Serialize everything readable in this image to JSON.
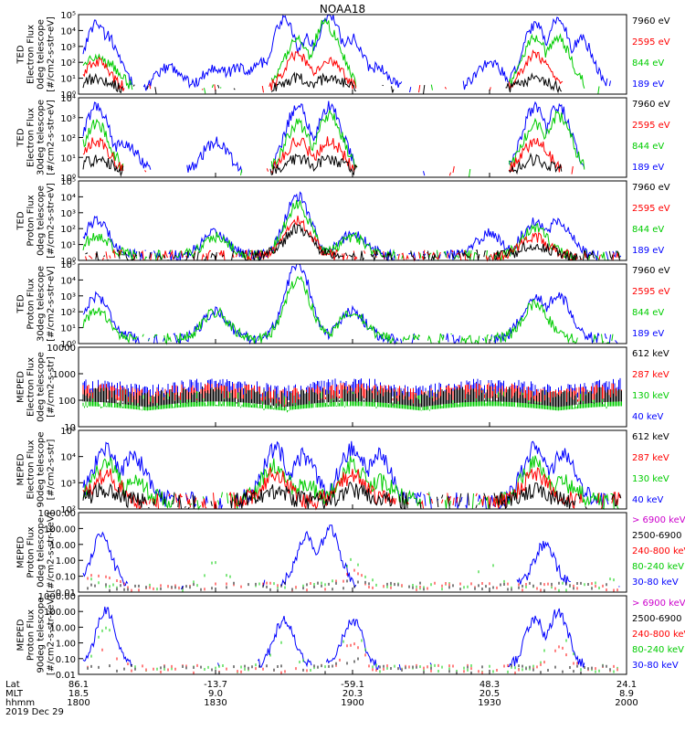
{
  "title": "NOAA18",
  "panels": [
    {
      "ylabel": [
        "TED",
        "Electron Flux",
        "0deg telescope",
        "[#/cm2-s-str-eV]"
      ],
      "ticks": [
        "10⁰",
        "10¹",
        "10²",
        "10³",
        "10⁴",
        "10⁵"
      ],
      "legend": [
        {
          "text": "7960 eV",
          "color": "#000000"
        },
        {
          "text": "2595 eV",
          "color": "#ff0000"
        },
        {
          "text": "844 eV",
          "color": "#00cc00"
        },
        {
          "text": "189 eV",
          "color": "#0000ff"
        }
      ]
    },
    {
      "ylabel": [
        "TED",
        "Electron Flux",
        "30deg telescope",
        "[#/cm2-s-str-eV]"
      ],
      "ticks": [
        "10⁰",
        "10¹",
        "10²",
        "10³",
        "10⁴"
      ],
      "legend": [
        {
          "text": "7960 eV",
          "color": "#000000"
        },
        {
          "text": "2595 eV",
          "color": "#ff0000"
        },
        {
          "text": "844 eV",
          "color": "#00cc00"
        },
        {
          "text": "189 eV",
          "color": "#0000ff"
        }
      ]
    },
    {
      "ylabel": [
        "TED",
        "Proton Flux",
        "0deg telescope",
        "[#/cm2-s-str-eV]"
      ],
      "ticks": [
        "10⁰",
        "10¹",
        "10²",
        "10³",
        "10⁴",
        "10⁵"
      ],
      "legend": [
        {
          "text": "7960 eV",
          "color": "#000000"
        },
        {
          "text": "2595 eV",
          "color": "#ff0000"
        },
        {
          "text": "844 eV",
          "color": "#00cc00"
        },
        {
          "text": "189 eV",
          "color": "#0000ff"
        }
      ]
    },
    {
      "ylabel": [
        "TED",
        "Proton Flux",
        "30deg telescope",
        "[#/cm2-s-str-eV]"
      ],
      "ticks": [
        "10⁰",
        "10¹",
        "10²",
        "10³",
        "10⁴",
        "10⁵"
      ],
      "legend": [
        {
          "text": "7960 eV",
          "color": "#000000"
        },
        {
          "text": "2595 eV",
          "color": "#ff0000"
        },
        {
          "text": "844 eV",
          "color": "#00cc00"
        },
        {
          "text": "189 eV",
          "color": "#0000ff"
        }
      ]
    },
    {
      "ylabel": [
        "MEPED",
        "Electron Flux",
        "0deg telescope",
        "[#/cm2-s-str]"
      ],
      "ticks": [
        "10",
        "100",
        "1000",
        "10000"
      ],
      "legend": [
        {
          "text": "612 keV",
          "color": "#000000"
        },
        {
          "text": "287 keV",
          "color": "#ff0000"
        },
        {
          "text": "130 keV",
          "color": "#00cc00"
        },
        {
          "text": "40 keV",
          "color": "#0000ff"
        }
      ]
    },
    {
      "ylabel": [
        "MEPED",
        "Electron Flux",
        "90deg telescope",
        "[#/cm2-s-str]"
      ],
      "ticks": [
        "10²",
        "10³",
        "10⁴",
        "10⁵"
      ],
      "legend": [
        {
          "text": "612 keV",
          "color": "#000000"
        },
        {
          "text": "287 keV",
          "color": "#ff0000"
        },
        {
          "text": "130 keV",
          "color": "#00cc00"
        },
        {
          "text": "40 keV",
          "color": "#0000ff"
        }
      ]
    },
    {
      "ylabel": [
        "MEPED",
        "Proton Flux",
        "0deg telescope",
        "[#/cm2-s-str-keV]"
      ],
      "ticks": [
        "0.01",
        "0.10",
        "1.00",
        "10.00",
        "100.00",
        "1000.00"
      ],
      "legend": [
        {
          "text": "> 6900 keV",
          "color": "#cc00cc"
        },
        {
          "text": "2500-6900",
          "color": "#000000"
        },
        {
          "text": "240-800 keV",
          "color": "#ff0000"
        },
        {
          "text": "80-240 keV",
          "color": "#00cc00"
        },
        {
          "text": "30-80 keV",
          "color": "#0000ff"
        }
      ]
    },
    {
      "ylabel": [
        "MEPED",
        "Proton Flux",
        "90deg telescope",
        "[#/cm2-s-str-keV]"
      ],
      "ticks": [
        "0.01",
        "0.10",
        "1.00",
        "10.00",
        "100.00",
        "1000.00"
      ],
      "legend": [
        {
          "text": "> 6900 keV",
          "color": "#cc00cc"
        },
        {
          "text": "2500-6900",
          "color": "#000000"
        },
        {
          "text": "240-800 keV",
          "color": "#ff0000"
        },
        {
          "text": "80-240 keV",
          "color": "#00cc00"
        },
        {
          "text": "30-80 keV",
          "color": "#0000ff"
        }
      ]
    }
  ],
  "footer": {
    "row_labels": [
      "Lat",
      "MLT",
      "hhmm"
    ],
    "date": "2019 Dec 29",
    "columns": [
      {
        "lat": "86.1",
        "mlt": "18.5",
        "hhmm": "1800"
      },
      {
        "lat": "-13.7",
        "mlt": "9.0",
        "hhmm": "1830"
      },
      {
        "lat": "-59.1",
        "mlt": "20.3",
        "hhmm": "1900"
      },
      {
        "lat": "48.3",
        "mlt": "20.5",
        "hhmm": "1930"
      },
      {
        "lat": "24.1",
        "mlt": "8.9",
        "hhmm": "2000"
      }
    ]
  },
  "chart_data": {
    "type": "line",
    "title": "NOAA18",
    "x_axis": {
      "label": "hhmm",
      "range": [
        "1800",
        "2000"
      ],
      "ticks": [
        "1800",
        "1830",
        "1900",
        "1930",
        "2000"
      ]
    },
    "y_scale": "log",
    "grid": false,
    "legend_position": "right",
    "panels": [
      {
        "name": "TED Electron Flux 0deg telescope",
        "ylim": [
          1,
          100000
        ],
        "series": [
          {
            "name": "189 eV",
            "color": "#0000ff",
            "x": [
              "1804",
              "1806",
              "1820",
              "1830",
              "1835",
              "1840",
              "1845",
              "1850",
              "1855",
              "1900",
              "1905",
              "1930",
              "1940",
              "1945",
              "1950"
            ],
            "values": [
              30000,
              5000,
              50,
              50,
              50,
              100,
              50000,
              3000,
              100000,
              3000,
              50,
              100,
              20000,
              50000,
              3000
            ]
          },
          {
            "name": "844 eV",
            "color": "#00cc00",
            "x": [
              "1804",
              "1806",
              "1848",
              "1854",
              "1855",
              "1940",
              "1945"
            ],
            "values": [
              300,
              100,
              3000,
              30000,
              10000,
              3000,
              3000
            ]
          },
          {
            "name": "2595 eV",
            "color": "#ff0000",
            "x": [
              "1804",
              "1848",
              "1855",
              "1940"
            ],
            "values": [
              100,
              300,
              100,
              300
            ]
          },
          {
            "name": "7960 eV",
            "color": "#000000",
            "x": [
              "1804",
              "1848",
              "1855",
              "1940"
            ],
            "values": [
              10,
              10,
              10,
              10
            ]
          }
        ]
      },
      {
        "name": "TED Electron Flux 30deg telescope",
        "ylim": [
          1,
          30000
        ],
        "series": [
          {
            "name": "189 eV",
            "color": "#0000ff",
            "x": [
              "1804",
              "1810",
              "1830",
              "1848",
              "1855",
              "1940",
              "1945"
            ],
            "values": [
              10000,
              100,
              100,
              10000,
              10000,
              10000,
              10000
            ]
          },
          {
            "name": "844 eV",
            "color": "#00cc00",
            "x": [
              "1804",
              "1848",
              "1855",
              "1940",
              "1945"
            ],
            "values": [
              1000,
              1000,
              3000,
              1000,
              3000
            ]
          },
          {
            "name": "2595 eV",
            "color": "#ff0000",
            "x": [
              "1804",
              "1848",
              "1855",
              "1940"
            ],
            "values": [
              100,
              100,
              100,
              100
            ]
          },
          {
            "name": "7960 eV",
            "color": "#000000",
            "x": [
              "1804",
              "1848",
              "1855",
              "1940"
            ],
            "values": [
              10,
              10,
              10,
              10
            ]
          }
        ]
      },
      {
        "name": "TED Proton Flux 0deg telescope",
        "ylim": [
          1,
          100000
        ],
        "series": [
          {
            "name": "189 eV",
            "color": "#0000ff",
            "x": [
              "1804",
              "1830",
              "1848",
              "1900",
              "1930",
              "1940",
              "1945"
            ],
            "values": [
              300,
              50,
              10000,
              50,
              50,
              300,
              300
            ]
          },
          {
            "name": "844 eV",
            "color": "#00cc00",
            "x": [
              "1804",
              "1830",
              "1848",
              "1900",
              "1940"
            ],
            "values": [
              30,
              30,
              3000,
              30,
              100
            ]
          },
          {
            "name": "2595 eV",
            "color": "#ff0000",
            "x": [
              "1848",
              "1940"
            ],
            "values": [
              300,
              30
            ]
          },
          {
            "name": "7960 eV",
            "color": "#000000",
            "x": [
              "1848",
              "1940"
            ],
            "values": [
              100,
              10
            ]
          }
        ]
      },
      {
        "name": "TED Proton Flux 30deg telescope",
        "ylim": [
          1,
          100000
        ],
        "series": [
          {
            "name": "189 eV",
            "color": "#0000ff",
            "x": [
              "1804",
              "1830",
              "1848",
              "1900",
              "1940",
              "1945"
            ],
            "values": [
              1000,
              100,
              100000,
              100,
              1000,
              1000
            ]
          },
          {
            "name": "844 eV",
            "color": "#00cc00",
            "x": [
              "1804",
              "1830",
              "1848",
              "1900",
              "1940"
            ],
            "values": [
              100,
              100,
              10000,
              100,
              300
            ]
          }
        ]
      },
      {
        "name": "MEPED Electron Flux 0deg telescope",
        "ylim": [
          10,
          10000
        ],
        "series": [
          {
            "name": "40 keV",
            "color": "#0000ff",
            "x": [
              "1800",
              "1830",
              "1900",
              "1930",
              "2000"
            ],
            "values": [
              300,
              300,
              300,
              300,
              300
            ]
          },
          {
            "name": "130 keV",
            "color": "#00cc00",
            "x": [
              "1800",
              "1830",
              "1900",
              "1930",
              "2000"
            ],
            "values": [
              100,
              100,
              100,
              100,
              100
            ]
          },
          {
            "name": "287 keV",
            "color": "#ff0000",
            "x": [
              "1800",
              "1830",
              "1900",
              "1930",
              "2000"
            ],
            "values": [
              200,
              200,
              200,
              200,
              200
            ]
          },
          {
            "name": "612 keV",
            "color": "#000000",
            "x": [
              "1800",
              "1830",
              "1900",
              "1930",
              "2000"
            ],
            "values": [
              150,
              150,
              150,
              150,
              150
            ]
          }
        ]
      },
      {
        "name": "MEPED Electron Flux 90deg telescope",
        "ylim": [
          100,
          100000
        ],
        "series": [
          {
            "name": "40 keV",
            "color": "#0000ff",
            "x": [
              "1806",
              "1812",
              "1843",
              "1849",
              "1900",
              "1906",
              "1940",
              "1946"
            ],
            "values": [
              20000,
              10000,
              20000,
              10000,
              20000,
              10000,
              20000,
              10000
            ]
          },
          {
            "name": "130 keV",
            "color": "#00cc00",
            "x": [
              "1806",
              "1812",
              "1843",
              "1849",
              "1900",
              "1906",
              "1940",
              "1946"
            ],
            "values": [
              5000,
              1000,
              5000,
              1000,
              5000,
              1000,
              5000,
              1000
            ]
          },
          {
            "name": "287 keV",
            "color": "#ff0000",
            "x": [
              "1806",
              "1843",
              "1900",
              "1940"
            ],
            "values": [
              2000,
              2000,
              2000,
              2000
            ]
          },
          {
            "name": "612 keV",
            "color": "#000000",
            "x": [
              "1806",
              "1843",
              "1900",
              "1940"
            ],
            "values": [
              500,
              500,
              500,
              500
            ]
          }
        ]
      },
      {
        "name": "MEPED Proton Flux 0deg telescope",
        "ylim": [
          0.01,
          1000
        ],
        "series": [
          {
            "name": "30-80 keV",
            "color": "#0000ff",
            "x": [
              "1805",
              "1850",
              "1855",
              "1942"
            ],
            "values": [
              30,
              30,
              100,
              10
            ]
          },
          {
            "name": "80-240 keV",
            "color": "#00cc00",
            "x": [
              "1800",
              "1830",
              "1900",
              "1930",
              "2000"
            ],
            "values": [
              1,
              1,
              1,
              1,
              1
            ]
          },
          {
            "name": "240-800 keV",
            "color": "#ff0000",
            "x": [
              "1805",
              "1900"
            ],
            "values": [
              0.2,
              0.2
            ]
          },
          {
            "name": "2500-6900",
            "color": "#000000",
            "x": [
              "1900"
            ],
            "values": [
              0.05
            ]
          }
        ]
      },
      {
        "name": "MEPED Proton Flux 90deg telescope",
        "ylim": [
          0.01,
          1000
        ],
        "series": [
          {
            "name": "30-80 keV",
            "color": "#0000ff",
            "x": [
              "1806",
              "1845",
              "1900",
              "1940",
              "1945"
            ],
            "values": [
              100,
              30,
              30,
              30,
              100
            ]
          },
          {
            "name": "80-240 keV",
            "color": "#00cc00",
            "x": [
              "1806",
              "1845",
              "1900",
              "1945"
            ],
            "values": [
              10,
              3,
              10,
              10
            ]
          },
          {
            "name": "240-800 keV",
            "color": "#ff0000",
            "x": [
              "1806",
              "1900",
              "1945"
            ],
            "values": [
              0.5,
              1,
              0.5
            ]
          },
          {
            "name": "2500-6900",
            "color": "#000000",
            "x": [
              "1900"
            ],
            "values": [
              0.1
            ]
          }
        ]
      }
    ]
  }
}
